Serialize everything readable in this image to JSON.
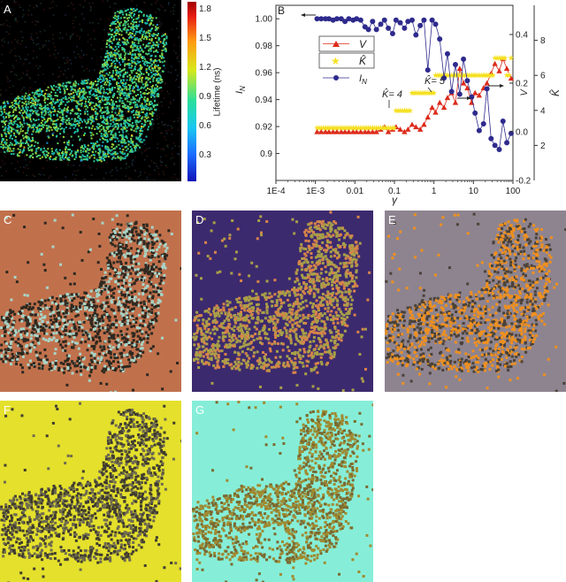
{
  "panels": {
    "A": {
      "letter": "A"
    },
    "B": {
      "letter": "B"
    },
    "C": {
      "letter": "C",
      "bg": "#c0714c",
      "fg": "#2e2820",
      "fg2": "#a8d4c8"
    },
    "D": {
      "letter": "D",
      "bg": "#3c2a6e",
      "fg": "#a8a048",
      "fg2": "#d8844a"
    },
    "E": {
      "letter": "E",
      "bg": "#8e8490",
      "fg": "#f0901e",
      "fg2": "#4a4238"
    },
    "F": {
      "letter": "F",
      "bg": "#e4e02c",
      "fg": "#403c30",
      "fg2": "#6e6a50"
    },
    "G": {
      "letter": "G",
      "bg": "#86eed8",
      "fg": "#a08a32",
      "fg2": "#7a6a30"
    }
  },
  "colorbar": {
    "label": "Lifetime (ns)",
    "ticks": [
      "1.8",
      "1.5",
      "1.2",
      "0.9",
      "0.6",
      "0.3"
    ],
    "tick_values": [
      1.8,
      1.5,
      1.2,
      0.9,
      0.6,
      0.3
    ],
    "range": [
      0.1,
      1.95
    ]
  },
  "chart_data": {
    "type": "line",
    "xlabel": "γ",
    "x_scale": "log",
    "xlim": [
      0.0001,
      100
    ],
    "x_ticks": [
      "1E-4",
      "1E-3",
      "0.01",
      "0.1",
      "1",
      "10",
      "100"
    ],
    "x_tick_values": [
      0.0001,
      0.001,
      0.01,
      0.1,
      1,
      10,
      100
    ],
    "y_left": {
      "label": "I",
      "label_sub": "N",
      "lim": [
        0.88,
        1.01
      ],
      "ticks": [
        "1.00",
        "0.98",
        "0.96",
        "0.94",
        "0.92",
        "0.9"
      ],
      "tick_values": [
        1.0,
        0.98,
        0.96,
        0.94,
        0.92,
        0.9
      ]
    },
    "y_right1": {
      "label": "V",
      "lim": [
        -0.2,
        0.52
      ],
      "ticks": [
        "0.4",
        "0.2",
        "0.0",
        "-0.2"
      ],
      "tick_values": [
        0.4,
        0.2,
        0.0,
        -0.2
      ]
    },
    "y_right2": {
      "label": "K̂",
      "lim": [
        0,
        10
      ],
      "ticks": [
        "8",
        "6",
        "4",
        "2"
      ],
      "tick_values": [
        8,
        6,
        4,
        2
      ]
    },
    "legend": {
      "position": "top-left",
      "entries": [
        {
          "label": "V",
          "color": "#dd2a1a",
          "marker": "triangle"
        },
        {
          "label": "K̂",
          "color": "#f5e020",
          "marker": "star"
        },
        {
          "label": "I",
          "label_sub": "N",
          "color": "#2e2a8c",
          "marker": "circle"
        }
      ]
    },
    "annotations": [
      {
        "text": "K̂= 4",
        "x": 0.12,
        "y_k": 4.6
      },
      {
        "text": "K̂= 5",
        "x": 0.5,
        "y_k": 6.2
      }
    ],
    "series": [
      {
        "name": "V",
        "axis": "y_right1",
        "color": "#dd2a1a",
        "x": [
          0.0011,
          0.0014,
          0.0018,
          0.0022,
          0.0028,
          0.0035,
          0.0045,
          0.0056,
          0.007,
          0.009,
          0.011,
          0.014,
          0.018,
          0.022,
          0.028,
          0.035,
          0.045,
          0.056,
          0.07,
          0.09,
          0.11,
          0.14,
          0.18,
          0.22,
          0.28,
          0.35,
          0.45,
          0.56,
          0.7,
          0.9,
          1.1,
          1.4,
          1.8,
          2.2,
          2.8,
          3.5,
          4.5,
          5.6,
          7,
          9,
          11,
          14,
          18,
          22,
          28,
          35,
          45,
          56,
          70,
          90
        ],
        "y": [
          0.0,
          0.0,
          0.0,
          0.0,
          0.0,
          0.0,
          0.0,
          0.0,
          0.0,
          0.0,
          0.0,
          0.0,
          0.0,
          0.0,
          0.0,
          0.0,
          0.01,
          0.02,
          0.0,
          0.01,
          0.02,
          0.01,
          0.0,
          0.01,
          0.03,
          0.02,
          0.01,
          0.03,
          0.06,
          0.1,
          0.08,
          0.12,
          0.1,
          0.14,
          0.16,
          0.12,
          0.26,
          0.2,
          0.18,
          0.12,
          0.16,
          0.15,
          0.18,
          0.2,
          0.24,
          0.28,
          0.25,
          0.3,
          0.26,
          0.22
        ]
      },
      {
        "name": "K̂",
        "axis": "y_right2",
        "color": "#f5e020",
        "x": [
          0.0011,
          0.0014,
          0.0018,
          0.0022,
          0.0028,
          0.0035,
          0.0045,
          0.0056,
          0.007,
          0.009,
          0.011,
          0.014,
          0.018,
          0.022,
          0.028,
          0.035,
          0.045,
          0.056,
          0.07,
          0.09,
          0.11,
          0.14,
          0.18,
          0.22,
          0.28,
          0.35,
          0.45,
          0.56,
          0.7,
          0.9,
          1.1,
          1.4,
          1.8,
          2.2,
          2.8,
          3.5,
          4.5,
          5.6,
          7,
          9,
          11,
          14,
          18,
          22,
          28,
          35,
          45,
          56,
          70,
          90
        ],
        "y": [
          3,
          3,
          3,
          3,
          3,
          3,
          3,
          3,
          3,
          3,
          3,
          3,
          3,
          3,
          3,
          3,
          3,
          3,
          3,
          3,
          4,
          4,
          4,
          4,
          5,
          5,
          5,
          5,
          5,
          5,
          6,
          6,
          6,
          6,
          6,
          6,
          6,
          6,
          6,
          6,
          6,
          6,
          6,
          6,
          6,
          7,
          7,
          7,
          6,
          7
        ]
      },
      {
        "name": "I",
        "name_sub": "N",
        "axis": "y_left",
        "color": "#2e2a8c",
        "x": [
          0.0011,
          0.0014,
          0.0018,
          0.0022,
          0.0028,
          0.0035,
          0.0045,
          0.0056,
          0.007,
          0.009,
          0.011,
          0.014,
          0.018,
          0.022,
          0.028,
          0.035,
          0.045,
          0.056,
          0.07,
          0.09,
          0.11,
          0.14,
          0.18,
          0.22,
          0.28,
          0.35,
          0.45,
          0.56,
          0.7,
          0.9,
          1.1,
          1.4,
          1.8,
          2.2,
          2.8,
          3.5,
          4.5,
          5.6,
          7,
          9,
          11,
          14,
          18,
          22,
          28,
          35,
          45,
          56,
          70,
          90
        ],
        "y": [
          1.0,
          1.0,
          1.0,
          1.0,
          0.999,
          1.0,
          1.0,
          0.998,
          1.0,
          0.999,
          1.0,
          0.999,
          0.994,
          0.992,
          0.998,
          0.992,
          0.996,
          0.999,
          0.993,
          0.989,
          0.999,
          0.997,
          0.993,
          0.998,
          0.999,
          0.988,
          0.995,
          0.999,
          0.962,
          0.999,
          0.996,
          0.985,
          0.956,
          0.974,
          0.946,
          0.966,
          0.944,
          0.97,
          0.954,
          0.942,
          0.93,
          0.917,
          0.922,
          0.948,
          0.911,
          0.906,
          0.903,
          0.924,
          0.908,
          0.915
        ]
      }
    ]
  }
}
